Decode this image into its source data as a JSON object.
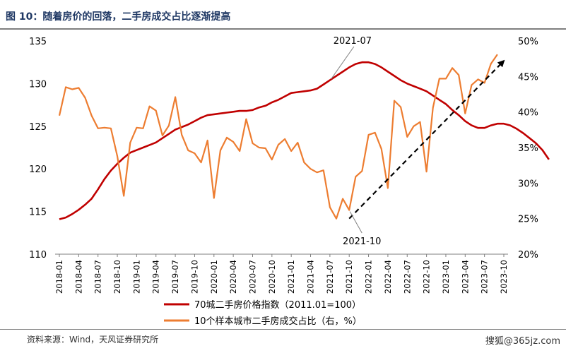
{
  "title": "图 10：随着房价的回落，二手房成交占比逐渐提高",
  "source": "资料来源：Wind，天风证券研究所",
  "watermark_corner": "搜狐@365jz.com",
  "colors": {
    "index_line": "#c00000",
    "share_line": "#ed7d31",
    "trend": "#000000",
    "title": "#1f3864"
  },
  "chart_data": {
    "type": "line",
    "x_tick_labels": [
      "2018-01",
      "2018-04",
      "2018-07",
      "2018-10",
      "2019-01",
      "2019-04",
      "2019-07",
      "2019-10",
      "2020-01",
      "2020-04",
      "2020-07",
      "2020-10",
      "2021-01",
      "2021-04",
      "2021-07",
      "2021-10",
      "2022-01",
      "2022-04",
      "2022-07",
      "2022-10",
      "2023-01",
      "2023-04",
      "2023-07",
      "2023-10"
    ],
    "y_left": {
      "ticks": [
        "110",
        "115",
        "120",
        "125",
        "130",
        "135"
      ],
      "range": [
        110,
        135
      ]
    },
    "y_right": {
      "ticks": [
        "20%",
        "25%",
        "30%",
        "35%",
        "40%",
        "45%",
        "50%"
      ],
      "range": [
        20,
        50
      ]
    },
    "series": [
      {
        "name": "70城二手房价格指数（2011.01=100）",
        "axis": "left",
        "values": [
          114.1,
          114.3,
          114.7,
          115.2,
          115.8,
          116.5,
          117.6,
          118.8,
          119.8,
          120.6,
          121.3,
          121.9,
          122.2,
          122.5,
          122.8,
          123.1,
          123.6,
          124.1,
          124.6,
          124.9,
          125.2,
          125.6,
          126.0,
          126.3,
          126.4,
          126.5,
          126.6,
          126.7,
          126.8,
          126.8,
          126.9,
          127.2,
          127.4,
          127.8,
          128.1,
          128.5,
          128.9,
          129.0,
          129.1,
          129.2,
          129.4,
          129.9,
          130.4,
          130.9,
          131.4,
          131.9,
          132.3,
          132.5,
          132.5,
          132.3,
          131.9,
          131.4,
          130.9,
          130.4,
          130.0,
          129.7,
          129.4,
          129.1,
          128.6,
          128.1,
          127.6,
          126.9,
          126.3,
          125.6,
          125.1,
          124.8,
          124.8,
          125.1,
          125.3,
          125.3,
          125.1,
          124.7,
          124.2,
          123.6,
          123.0,
          122.2,
          121.1
        ]
      },
      {
        "name": "10个样本城市二手房成交占比（右，%）",
        "axis": "right",
        "values": [
          39.5,
          43.5,
          43.2,
          43.4,
          42.0,
          39.5,
          37.7,
          37.8,
          37.7,
          33.8,
          28.2,
          35.7,
          37.8,
          37.7,
          40.8,
          40.2,
          36.7,
          38.1,
          42.1,
          36.8,
          34.6,
          34.2,
          32.9,
          36.0,
          27.9,
          34.6,
          36.4,
          35.8,
          34.5,
          39.0,
          35.6,
          35.0,
          34.9,
          33.3,
          35.4,
          36.2,
          34.5,
          35.7,
          32.9,
          32.0,
          31.5,
          31.8,
          26.6,
          25.0,
          27.8,
          26.2,
          30.9,
          31.7,
          36.8,
          37.1,
          34.8,
          29.3,
          41.6,
          40.7,
          36.5,
          38.0,
          38.6,
          31.6,
          40.6,
          44.7,
          44.7,
          46.2,
          45.2,
          39.8,
          43.8,
          44.6,
          44.1,
          46.8,
          48.1
        ]
      }
    ],
    "annotations": [
      "2021-07",
      "2021-10"
    ],
    "trend_arrow": {
      "from": [
        "2021-10",
        25.0
      ],
      "to": [
        "2023-10",
        47.2
      ]
    },
    "legend": [
      "70城二手房价格指数（2011.01=100）",
      "10个样本城市二手房成交占比（右，%）"
    ],
    "legend_position": "bottom",
    "grid": false
  }
}
